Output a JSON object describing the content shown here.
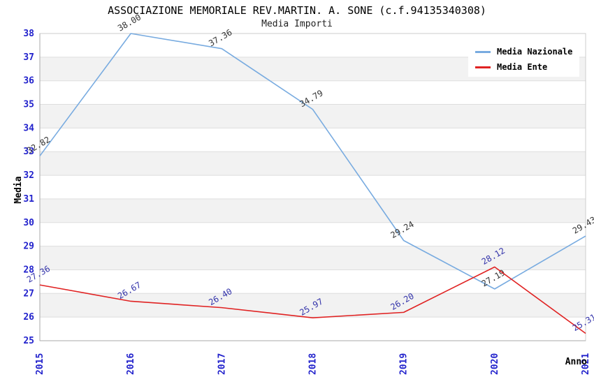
{
  "header": {
    "title": "ASSOCIAZIONE MEMORIALE REV.MARTIN. A. SONE (c.f.94135340308)",
    "subtitle": "Media Importi"
  },
  "legend": {
    "items": [
      {
        "label": "Media Nazionale",
        "color": "#78ABE0"
      },
      {
        "label": "Media Ente",
        "color": "#E02222"
      }
    ]
  },
  "chart_data": {
    "type": "line",
    "title": "ASSOCIAZIONE MEMORIALE REV.MARTIN. A. SONE (c.f.94135340308)",
    "subtitle": "Media Importi",
    "categories": [
      "2015",
      "2016",
      "2017",
      "2018",
      "2019",
      "2020",
      "2021"
    ],
    "series": [
      {
        "name": "Media Nazionale",
        "color": "#78ABE0",
        "label_color": "#333333",
        "values": [
          32.82,
          38.0,
          37.36,
          34.79,
          29.24,
          27.19,
          29.43
        ],
        "labels": [
          "32.82",
          "38.00",
          "37.36",
          "34.79",
          "29.24",
          "27.19",
          "29.43"
        ]
      },
      {
        "name": "Media Ente",
        "color": "#E02222",
        "label_color": "#3333AA",
        "values": [
          27.36,
          26.67,
          26.4,
          25.97,
          26.2,
          28.12,
          25.31
        ],
        "labels": [
          "27.36",
          "26.67",
          "26.40",
          "25.97",
          "26.20",
          "28.12",
          "25.31"
        ]
      }
    ],
    "xlabel": "Anno",
    "ylabel": "Media",
    "ylim": [
      25,
      38
    ],
    "y_tick_step": 1,
    "grid": "horizontal-bands-alternating",
    "band_color": "#f2f2f2",
    "gridline_color": "#dedede",
    "axis_line_color": "#aaaaaa",
    "border_color": "#cccccc",
    "tick_label_color": "#2222CC",
    "axis_title_color": "#000000",
    "legend_position": "top-right"
  }
}
